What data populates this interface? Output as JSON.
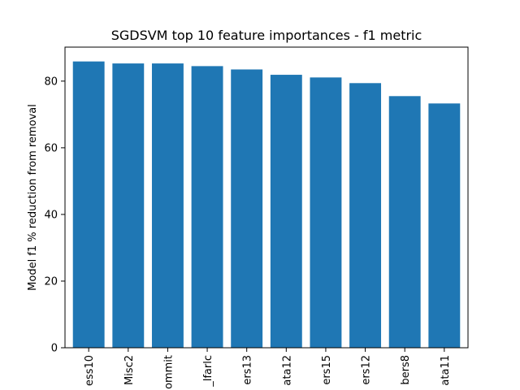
{
  "chart_data": {
    "type": "bar",
    "title": "SGDSVM top 10 feature importances - f1 metric",
    "xlabel": "",
    "ylabel": "Model f1 % reduction from removal",
    "categories": [
      "ess10",
      "Misc2",
      "ommit",
      "_lfarlc",
      "ers13",
      "ata12",
      "ers15",
      "ers12",
      "bers8",
      "ata11"
    ],
    "values": [
      85.9,
      85.3,
      85.3,
      84.5,
      83.5,
      81.9,
      81.1,
      79.4,
      75.5,
      73.3
    ],
    "ylim": [
      0,
      90.2
    ],
    "yticks": [
      0,
      20,
      40,
      60,
      80
    ],
    "bar_color": "#1f77b4",
    "grid": false,
    "legend": "none"
  }
}
